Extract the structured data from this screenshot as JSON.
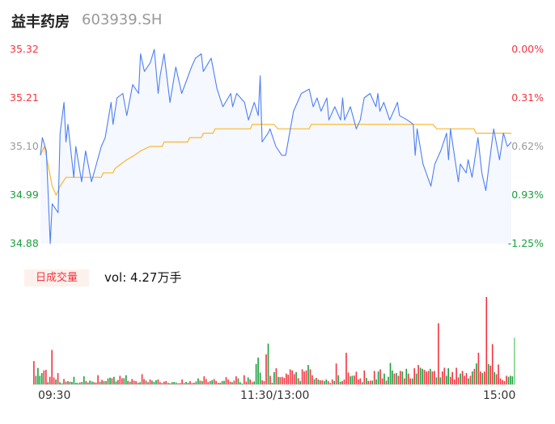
{
  "header": {
    "name": "益丰药房",
    "code": "603939.SH"
  },
  "colors": {
    "price_line": "#4e7ff5",
    "avg_line": "#f7b731",
    "area_fill": "#f5f8fe",
    "up": "#f5333f",
    "down": "#1a9f3c",
    "flat": "#999999",
    "last_bar": "#7fd18a"
  },
  "volume": {
    "badge": "日成交量",
    "label": "vol: 4.27万手"
  },
  "chart_data": {
    "type": "line",
    "y_ticks_left": [
      "35.32",
      "35.21",
      "35.10",
      "34.99",
      "34.88"
    ],
    "y_ticks_right": [
      "0.00%",
      "-0.31%",
      "-0.62%",
      "-0.93%",
      "-1.25%"
    ],
    "ylim": [
      34.88,
      35.32
    ],
    "prev_close": 35.32,
    "x_ticks": [
      "09:30",
      "11:30/13:00",
      "15:00"
    ],
    "price": [
      [
        "09:30",
        35.08
      ],
      [
        "09:31",
        35.12
      ],
      [
        "09:33",
        35.09
      ],
      [
        "09:35",
        34.88
      ],
      [
        "09:36",
        34.97
      ],
      [
        "09:39",
        34.95
      ],
      [
        "09:40",
        35.13
      ],
      [
        "09:42",
        35.2
      ],
      [
        "09:43",
        35.11
      ],
      [
        "09:44",
        35.15
      ],
      [
        "09:47",
        35.03
      ],
      [
        "09:48",
        35.1
      ],
      [
        "09:51",
        35.02
      ],
      [
        "09:53",
        35.09
      ],
      [
        "09:56",
        35.02
      ],
      [
        "10:01",
        35.1
      ],
      [
        "10:03",
        35.12
      ],
      [
        "10:06",
        35.2
      ],
      [
        "10:07",
        35.15
      ],
      [
        "10:09",
        35.21
      ],
      [
        "10:12",
        35.22
      ],
      [
        "10:14",
        35.17
      ],
      [
        "10:17",
        35.24
      ],
      [
        "10:20",
        35.22
      ],
      [
        "10:21",
        35.31
      ],
      [
        "10:23",
        35.27
      ],
      [
        "10:26",
        35.29
      ],
      [
        "10:28",
        35.32
      ],
      [
        "10:30",
        35.22
      ],
      [
        "10:31",
        35.26
      ],
      [
        "10:33",
        35.31
      ],
      [
        "10:36",
        35.2
      ],
      [
        "10:39",
        35.28
      ],
      [
        "10:42",
        35.22
      ],
      [
        "10:47",
        35.28
      ],
      [
        "10:49",
        35.3
      ],
      [
        "10:52",
        35.31
      ],
      [
        "10:53",
        35.27
      ],
      [
        "10:57",
        35.3
      ],
      [
        "11:00",
        35.23
      ],
      [
        "11:03",
        35.19
      ],
      [
        "11:07",
        35.22
      ],
      [
        "11:08",
        35.19
      ],
      [
        "11:10",
        35.22
      ],
      [
        "11:14",
        35.2
      ],
      [
        "11:16",
        35.16
      ],
      [
        "11:19",
        35.2
      ],
      [
        "11:21",
        35.17
      ],
      [
        "11:22",
        35.26
      ],
      [
        "11:23",
        35.11
      ],
      [
        "11:26",
        35.13
      ],
      [
        "11:27",
        35.14
      ],
      [
        "11:30",
        35.1
      ],
      [
        "13:03",
        35.08
      ],
      [
        "13:05",
        35.08
      ],
      [
        "13:09",
        35.18
      ],
      [
        "13:13",
        35.22
      ],
      [
        "13:17",
        35.23
      ],
      [
        "13:19",
        35.19
      ],
      [
        "13:21",
        35.21
      ],
      [
        "13:23",
        35.18
      ],
      [
        "13:26",
        35.21
      ],
      [
        "13:27",
        35.16
      ],
      [
        "13:30",
        35.19
      ],
      [
        "13:33",
        35.16
      ],
      [
        "13:34",
        35.21
      ],
      [
        "13:35",
        35.16
      ],
      [
        "13:38",
        35.19
      ],
      [
        "13:41",
        35.14
      ],
      [
        "13:43",
        35.16
      ],
      [
        "13:45",
        35.21
      ],
      [
        "13:48",
        35.22
      ],
      [
        "13:51",
        35.19
      ],
      [
        "13:52",
        35.22
      ],
      [
        "13:53",
        35.18
      ],
      [
        "13:55",
        35.2
      ],
      [
        "13:58",
        35.16
      ],
      [
        "14:00",
        35.18
      ],
      [
        "14:02",
        35.2
      ],
      [
        "14:03",
        35.17
      ],
      [
        "14:07",
        35.16
      ],
      [
        "14:10",
        35.15
      ],
      [
        "14:11",
        35.08
      ],
      [
        "14:12",
        35.14
      ],
      [
        "14:15",
        35.06
      ],
      [
        "14:19",
        35.01
      ],
      [
        "14:21",
        35.06
      ],
      [
        "14:24",
        35.09
      ],
      [
        "14:27",
        35.13
      ],
      [
        "14:28",
        35.07
      ],
      [
        "14:29",
        35.14
      ],
      [
        "14:33",
        35.02
      ],
      [
        "14:34",
        35.06
      ],
      [
        "14:37",
        35.04
      ],
      [
        "14:38",
        35.07
      ],
      [
        "14:40",
        35.03
      ],
      [
        "14:43",
        35.12
      ],
      [
        "14:45",
        35.04
      ],
      [
        "14:47",
        35.0
      ],
      [
        "14:51",
        35.14
      ],
      [
        "14:54",
        35.07
      ],
      [
        "14:56",
        35.13
      ],
      [
        "14:58",
        35.1
      ],
      [
        "15:00",
        35.11
      ]
    ],
    "avg_price": [
      [
        "09:30",
        35.08
      ],
      [
        "09:32",
        35.1
      ],
      [
        "09:36",
        35.01
      ],
      [
        "09:38",
        34.99
      ],
      [
        "09:40",
        35.01
      ],
      [
        "09:43",
        35.03
      ],
      [
        "10:01",
        35.03
      ],
      [
        "10:02",
        35.04
      ],
      [
        "10:07",
        35.04
      ],
      [
        "10:08",
        35.05
      ],
      [
        "10:14",
        35.07
      ],
      [
        "10:18",
        35.08
      ],
      [
        "10:21",
        35.09
      ],
      [
        "10:26",
        35.1
      ],
      [
        "10:32",
        35.1
      ],
      [
        "10:33",
        35.11
      ],
      [
        "10:45",
        35.11
      ],
      [
        "10:46",
        35.12
      ],
      [
        "10:52",
        35.12
      ],
      [
        "10:53",
        35.13
      ],
      [
        "10:58",
        35.13
      ],
      [
        "10:59",
        35.14
      ],
      [
        "11:17",
        35.14
      ],
      [
        "11:18",
        35.15
      ],
      [
        "11:29",
        35.15
      ],
      [
        "13:01",
        35.14
      ],
      [
        "13:17",
        35.14
      ],
      [
        "13:18",
        35.15
      ],
      [
        "14:20",
        35.15
      ],
      [
        "14:22",
        35.14
      ],
      [
        "14:41",
        35.14
      ],
      [
        "14:42",
        35.13
      ],
      [
        "15:00",
        35.13
      ]
    ],
    "volume_unit": "手",
    "volume": [
      435,
      160,
      305,
      160,
      210,
      260,
      270,
      40,
      140,
      640,
      130,
      90,
      210,
      40,
      20,
      100,
      50,
      60,
      50,
      45,
      140,
      30,
      25,
      35,
      45,
      150,
      60,
      35,
      70,
      55,
      40,
      35,
      170,
      50,
      85,
      60,
      60,
      110,
      125,
      115,
      140,
      55,
      80,
      160,
      115,
      115,
      170,
      65,
      50,
      100,
      70,
      60,
      30,
      40,
      190,
      100,
      70,
      40,
      90,
      70,
      45,
      75,
      90,
      40,
      25,
      50,
      60,
      30,
      20,
      40,
      45,
      35,
      20,
      25,
      90,
      25,
      45,
      30,
      60,
      25,
      30,
      55,
      110,
      70,
      60,
      150,
      100,
      40,
      60,
      80,
      100,
      60,
      30,
      30,
      60,
      65,
      135,
      90,
      50,
      40,
      70,
      150,
      110,
      40,
      15,
      170,
      50,
      130,
      90,
      40,
      55,
      380,
      500,
      220,
      75,
      60,
      560,
      760,
      160,
      30,
      230,
      300,
      140,
      135,
      140,
      120,
      200,
      180,
      280,
      260,
      190,
      230,
      115,
      60,
      280,
      240,
      260,
      360,
      280,
      170,
      95,
      120,
      90,
      75,
      75,
      60,
      90,
      60,
      25,
      90,
      60,
      390,
      170,
      50,
      60,
      90,
      590,
      220,
      150,
      160,
      165,
      235,
      90,
      110,
      40,
      260,
      120,
      65,
      70,
      70,
      250,
      90,
      240,
      280,
      110,
      200,
      70,
      140,
      400,
      260,
      200,
      210,
      160,
      250,
      240,
      110,
      290,
      200,
      110,
      110,
      300,
      200,
      360,
      310,
      290,
      270,
      240,
      250,
      290,
      240,
      250,
      130,
      1140,
      130,
      240,
      310,
      160,
      300,
      140,
      230,
      90,
      310,
      130,
      200,
      250,
      160,
      210,
      110,
      160,
      240,
      290,
      390,
      590,
      240,
      210,
      240,
      1630,
      380,
      350,
      750,
      230,
      190,
      370,
      110,
      80,
      60,
      160,
      140,
      160,
      150,
      870
    ],
    "volume_direction": "rggggrrgrrrgrggrgrgggggrggrgggrrrgrgrggrggrrrggrgrrrggrrgrrgggrrgrrgrgggrrrggrrrrggrgrrrggrrgrggrrrgrrgggrrgrrggggrrrgrggrgrrrrrrrrgrgrrrgrrgrgrrggrrrgrggrrrrggrrrrgrgrrgrggrrgrgggrgrrgrgrrgrgrggrrrgrrgrgrrggrrrrrgrrrgrgrgrrgrrgrrgrrrrrrgg"
  }
}
